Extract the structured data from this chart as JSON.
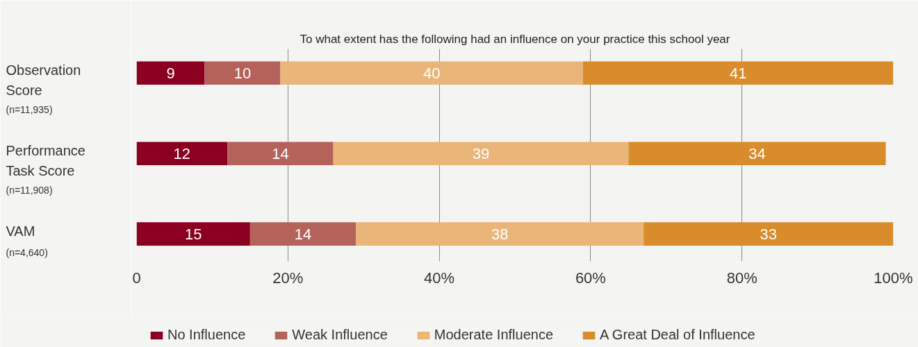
{
  "chart_data": {
    "type": "bar",
    "orientation": "horizontal",
    "stacked": true,
    "title": "To what extent has the following had an influence on your practice this school year",
    "categories": [
      "Observation\nScore\n(n=11,935)",
      "Performance\nTask Score\n(n=11,908)",
      "VAM\n(n=4,640)"
    ],
    "series": [
      {
        "name": "No Influence",
        "color": "#8b0020",
        "values": [
          9,
          12,
          15
        ]
      },
      {
        "name": "Weak Influence",
        "color": "#b5625b",
        "values": [
          10,
          14,
          14
        ]
      },
      {
        "name": "Moderate Influence",
        "color": "#e9b578",
        "values": [
          40,
          39,
          38
        ]
      },
      {
        "name": "A Great Deal of Influence",
        "color": "#d98c2b",
        "values": [
          41,
          34,
          33
        ]
      }
    ],
    "xlim": [
      0,
      100
    ],
    "xticks": [
      0,
      {
        "value": 20,
        "label": "20%"
      },
      {
        "value": 40,
        "label": "40%"
      },
      {
        "value": 60,
        "label": "60%"
      },
      {
        "value": 80,
        "label": "80%"
      },
      {
        "value": 100,
        "label": "100%"
      }
    ],
    "grid": "x",
    "legend": "bottom",
    "data_labels": true
  }
}
